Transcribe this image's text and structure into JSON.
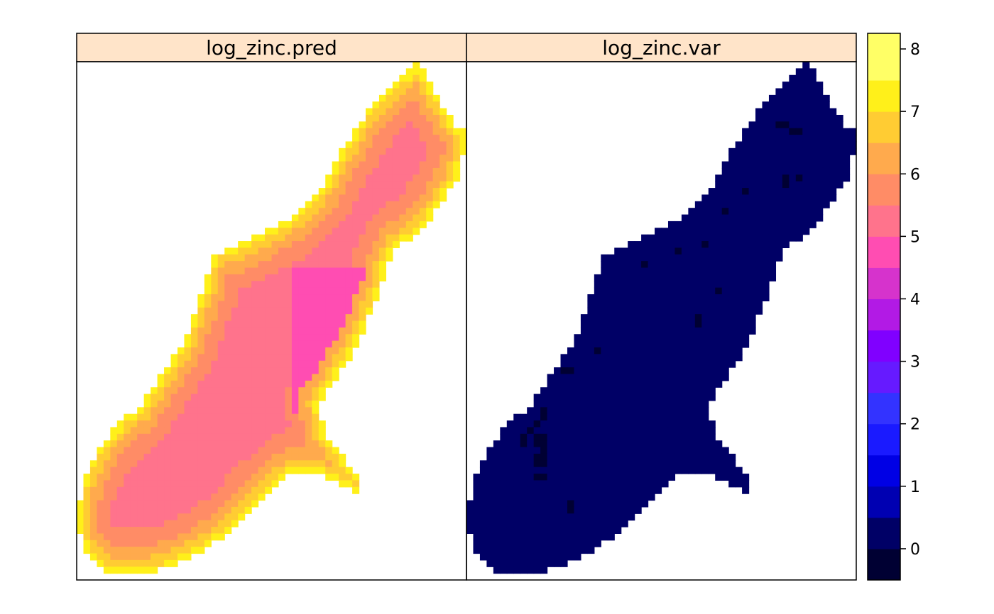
{
  "chart_data": {
    "type": "heatmap",
    "description_free": true,
    "panels": [
      {
        "key": "pred",
        "title": "log_zinc.pred"
      },
      {
        "key": "var",
        "title": "log_zinc.var"
      }
    ],
    "colorbar": {
      "range": [
        -0.5,
        8.25
      ],
      "breaks": [
        -0.5,
        0.0,
        0.5,
        1.0,
        1.5,
        2.0,
        2.5,
        3.0,
        3.5,
        4.0,
        4.5,
        5.0,
        5.5,
        6.0,
        6.5,
        7.0,
        7.5,
        8.25
      ],
      "colors": [
        "#000033",
        "#000066",
        "#0000B2",
        "#0000E5",
        "#1A1AFF",
        "#3333FF",
        "#661AFF",
        "#8000FF",
        "#B21AE5",
        "#D633CC",
        "#FF4DB2",
        "#FF738C",
        "#FF8C66",
        "#FFAA4D",
        "#FFCC33",
        "#FFF01A",
        "#FFFF66"
      ],
      "ticks": [
        "0",
        "1",
        "2",
        "3",
        "4",
        "5",
        "6",
        "7",
        "8"
      ],
      "tick_values": [
        0,
        1,
        2,
        3,
        4,
        5,
        6,
        7,
        8
      ]
    },
    "pred_levels": {
      "outer": 7.25,
      "ring2": 6.75,
      "ring3": 6.25,
      "ring4": 5.75,
      "core": 5.25,
      "hotspot": 4.75
    },
    "var_levels": {
      "field": 0.25,
      "points": -0.25
    },
    "grid_cols": 58,
    "grid_rows": 78
  },
  "colors": {
    "strip": "#FFE4C9",
    "frame": "#000000"
  }
}
